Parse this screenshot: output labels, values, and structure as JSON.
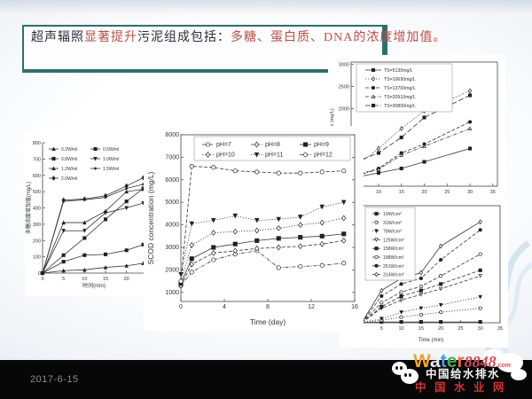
{
  "title": {
    "segments": [
      {
        "text": "超声辐照",
        "color": "#2d2d3a"
      },
      {
        "text": "显著提升",
        "color": "#b8504a"
      },
      {
        "text": "污泥组成包括：",
        "color": "#2d2d3a"
      },
      {
        "text": "多糖、蛋白质、DNA的浓度增加值。",
        "color": "#b8504a"
      }
    ]
  },
  "footer": {
    "date": "2017-6-15"
  },
  "logo": {
    "water_letters": [
      {
        "ch": "W",
        "color": "#f2a12e"
      },
      {
        "ch": "a",
        "color": "#ececf2"
      },
      {
        "ch": "t",
        "color": "#3aa0dc"
      },
      {
        "ch": "e",
        "color": "#46aa4e"
      },
      {
        "ch": "r",
        "color": "#f0682e"
      }
    ],
    "suffix": "8848",
    "suffix_color": "#d94b55",
    "tld": ".com",
    "line2": "中国给水排水",
    "line3": "中 国 水 业 网"
  },
  "chart_data": [
    {
      "id": "left",
      "type": "line",
      "name": "polysaccharide-increase-vs-time",
      "xlabel": "时间(min)",
      "ylabel": "多糖浓度增加值(mg/L)",
      "xlim": [
        0,
        24.5
      ],
      "ylim": [
        0,
        800
      ],
      "xticks": [
        0,
        5,
        10,
        15,
        20
      ],
      "yticks": [
        0,
        100,
        200,
        300,
        400,
        500,
        600,
        700,
        800
      ],
      "x": [
        0,
        5,
        10,
        15,
        20,
        24
      ],
      "legend_position": "top-left-inside",
      "series": [
        {
          "name": "0.2W/ml",
          "marker": "tu",
          "filled": true,
          "dash": "solid",
          "values": [
            0,
            15,
            20,
            35,
            45,
            60
          ]
        },
        {
          "name": "0.5W/ml",
          "marker": "sq",
          "filled": true,
          "dash": "solid",
          "values": [
            0,
            70,
            110,
            115,
            140,
            175
          ]
        },
        {
          "name": "0.8W/ml",
          "marker": "sq",
          "filled": true,
          "dash": "solid",
          "values": [
            0,
            110,
            215,
            330,
            440,
            520
          ]
        },
        {
          "name": "1.0W/ml",
          "marker": "td",
          "filled": true,
          "dash": "solid",
          "values": [
            0,
            260,
            260,
            370,
            400,
            430
          ]
        },
        {
          "name": "1.2W/ml",
          "marker": "tu",
          "filled": true,
          "dash": "solid",
          "values": [
            0,
            310,
            310,
            380,
            500,
            515
          ]
        },
        {
          "name": "1.5W/ml",
          "marker": "st",
          "filled": false,
          "dash": "solid",
          "values": [
            0,
            440,
            450,
            465,
            520,
            545
          ]
        },
        {
          "name": "2.0W/ml",
          "marker": "di",
          "filled": true,
          "dash": "solid",
          "values": [
            0,
            448,
            455,
            475,
            535,
            585
          ]
        }
      ]
    },
    {
      "id": "mid",
      "type": "line",
      "name": "scod-concentration-vs-time-ph",
      "xlabel": "Time (day)",
      "ylabel": "SCOD concentration (mg/L)",
      "xlim": [
        0,
        16
      ],
      "ylim": [
        600,
        8000
      ],
      "xticks": [
        0,
        4,
        8,
        12,
        16
      ],
      "yticks": [
        1000,
        2000,
        3000,
        4000,
        5000,
        6000,
        7000,
        8000
      ],
      "x": [
        0,
        1,
        3,
        5,
        7,
        9,
        11,
        13,
        15
      ],
      "legend_position": "top-inside-box",
      "series": [
        {
          "name": "pH=7",
          "marker": "ci",
          "filled": false,
          "dash": "dashdot",
          "values": [
            1300,
            1900,
            2450,
            2700,
            2850,
            2100,
            2150,
            2200,
            2300
          ]
        },
        {
          "name": "pH=8",
          "marker": "di",
          "filled": false,
          "dash": "dash",
          "values": [
            1300,
            2250,
            2750,
            2850,
            2950,
            3000,
            3050,
            3150,
            3300
          ]
        },
        {
          "name": "pH=9",
          "marker": "sq",
          "filled": true,
          "dash": "solid",
          "values": [
            1400,
            2500,
            3000,
            3150,
            3300,
            3400,
            3450,
            3500,
            3600
          ]
        },
        {
          "name": "pH=10",
          "marker": "di",
          "filled": false,
          "dash": "dot",
          "values": [
            1500,
            3100,
            3650,
            3700,
            3750,
            3850,
            4000,
            4100,
            4300
          ]
        },
        {
          "name": "pH=11",
          "marker": "td",
          "filled": true,
          "dash": "dot",
          "values": [
            1800,
            4050,
            4200,
            4400,
            4200,
            4250,
            4350,
            4800,
            5000
          ]
        },
        {
          "name": "pH=12",
          "marker": "ci",
          "filled": false,
          "dash": "dash",
          "values": [
            1500,
            6600,
            6550,
            6400,
            6350,
            6300,
            6300,
            6350,
            6400
          ]
        }
      ]
    },
    {
      "id": "tr",
      "type": "line",
      "name": "release-vs-time-ts",
      "xlabel": "",
      "ylabel": "release (mg/L)",
      "xlim": [
        4,
        36
      ],
      "ylim": [
        250,
        3050
      ],
      "xticks": [
        10,
        15,
        20,
        25,
        30,
        35
      ],
      "yticks": [
        1500,
        2000,
        2500,
        3000
      ],
      "x": [
        5,
        10,
        15,
        20,
        30
      ],
      "legend_position": "top-left-inside-box",
      "series": [
        {
          "name": "TS=5130mg/L",
          "marker": "sq",
          "filled": true,
          "dash": "solid",
          "values": [
            450,
            550,
            650,
            800,
            1100
          ]
        },
        {
          "name": "TS=10690mg/L",
          "marker": "di",
          "filled": false,
          "dash": "dot",
          "values": [
            700,
            1100,
            1550,
            1950,
            2400
          ]
        },
        {
          "name": "TS=13700mg/L",
          "marker": "ci",
          "filled": true,
          "dash": "dash",
          "values": [
            500,
            650,
            1000,
            1200,
            1700
          ]
        },
        {
          "name": "TS=20910mg/L",
          "marker": "tu",
          "filled": false,
          "dash": "dashdot",
          "values": [
            480,
            630,
            950,
            1150,
            1550
          ]
        },
        {
          "name": "TS=30800mg/L",
          "marker": "sq",
          "filled": true,
          "dash": "longdash",
          "values": [
            800,
            1000,
            1350,
            1800,
            2300
          ]
        }
      ]
    },
    {
      "id": "br",
      "type": "line",
      "name": "release-vs-time-power-density",
      "xlabel": "Time (min)",
      "ylabel": "",
      "xlim": [
        0,
        35
      ],
      "ylim": [
        0,
        1.45
      ],
      "xticks": [
        0,
        5,
        10,
        15,
        20,
        25,
        30,
        35
      ],
      "yticks": [
        0
      ],
      "ytick_labels": [
        "0.0"
      ],
      "x": [
        0,
        5,
        10,
        15,
        20,
        30
      ],
      "legend_position": "top-left-inside-box",
      "series": [
        {
          "name": "19W/cm²",
          "marker": "sq",
          "filled": true,
          "dash": "solid",
          "values": [
            0,
            0.01,
            0.01,
            0.01,
            0.01,
            0.01
          ]
        },
        {
          "name": "31W/cm²",
          "marker": "ci",
          "filled": false,
          "dash": "dot",
          "values": [
            0,
            0.03,
            0.07,
            0.1,
            0.13,
            0.18
          ]
        },
        {
          "name": "78W/cm²",
          "marker": "td",
          "filled": true,
          "dash": "dot",
          "values": [
            0,
            0.05,
            0.13,
            0.18,
            0.22,
            0.32
          ]
        },
        {
          "name": "125W/cm²",
          "marker": "td",
          "filled": false,
          "dash": "dash",
          "values": [
            0,
            0.18,
            0.28,
            0.35,
            0.42,
            0.58
          ]
        },
        {
          "name": "158W/cm²",
          "marker": "sq",
          "filled": true,
          "dash": "dash",
          "values": [
            0,
            0.2,
            0.33,
            0.4,
            0.48,
            0.65
          ]
        },
        {
          "name": "188W/cm²",
          "marker": "ci",
          "filled": false,
          "dash": "dash",
          "values": [
            0,
            0.25,
            0.38,
            0.45,
            0.58,
            0.85
          ]
        },
        {
          "name": "251W/cm²",
          "marker": "ci",
          "filled": true,
          "dash": "dash",
          "values": [
            0,
            0.33,
            0.48,
            0.55,
            0.78,
            1.15
          ]
        },
        {
          "name": "314W/cm²",
          "marker": "di",
          "filled": false,
          "dash": "solid",
          "values": [
            0,
            0.4,
            0.55,
            0.62,
            0.95,
            1.25
          ]
        }
      ]
    }
  ]
}
